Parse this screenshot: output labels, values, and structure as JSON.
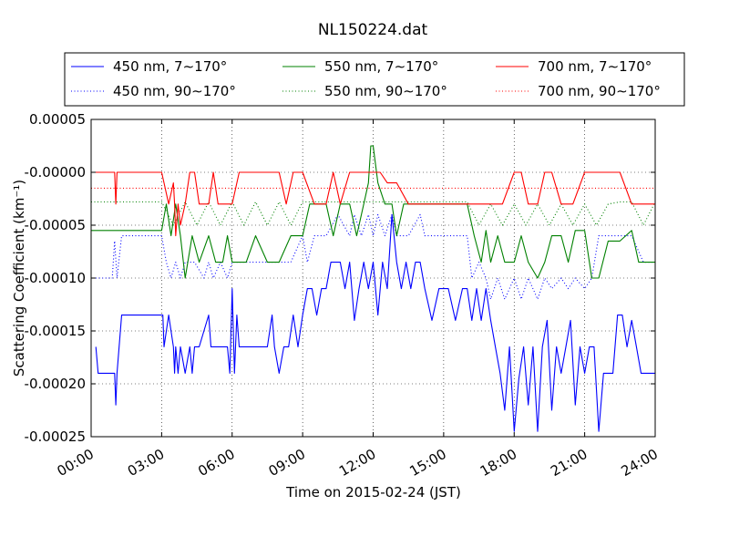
{
  "chart_data": {
    "type": "line",
    "title": "NL150224.dat",
    "xlabel": "Time on 2015-02-24 (JST)",
    "ylabel": "Scattering Coefficient (km⁻¹)",
    "xlim": [
      0,
      24
    ],
    "ylim": [
      -0.00025,
      5e-05
    ],
    "x_ticks": [
      0,
      3,
      6,
      9,
      12,
      15,
      18,
      21,
      24
    ],
    "x_tick_labels": [
      "00:00",
      "03:00",
      "06:00",
      "09:00",
      "12:00",
      "15:00",
      "18:00",
      "21:00",
      "24:00"
    ],
    "y_ticks": [
      5e-05,
      0.0,
      -5e-05,
      -0.0001,
      -0.00015,
      -0.0002,
      -0.00025
    ],
    "y_tick_labels": [
      "0.00005",
      "-0.00000",
      "-0.00005",
      "-0.00010",
      "-0.00015",
      "-0.00020",
      "-0.00025"
    ],
    "grid": true,
    "legend_position": "top, above plot, 3 columns",
    "series": [
      {
        "name": "450 nm, 7∼170°",
        "color": "#0000ff",
        "style": "solid",
        "x": [
          0.2,
          0.3,
          0.35,
          0.6,
          0.9,
          1.0,
          1.05,
          1.1,
          1.3,
          1.5,
          2.0,
          2.5,
          2.9,
          3.0,
          3.05,
          3.1,
          3.3,
          3.5,
          3.55,
          3.6,
          3.7,
          3.8,
          4.0,
          4.2,
          4.3,
          4.4,
          4.6,
          5.0,
          5.1,
          5.2,
          5.4,
          5.8,
          5.9,
          6.0,
          6.1,
          6.2,
          6.3,
          6.5,
          7.0,
          7.5,
          7.7,
          7.8,
          8.0,
          8.2,
          8.4,
          8.6,
          8.8,
          9.0,
          9.2,
          9.4,
          9.6,
          9.8,
          10.0,
          10.2,
          10.4,
          10.6,
          10.8,
          11.0,
          11.2,
          11.4,
          11.6,
          11.8,
          12.0,
          12.2,
          12.4,
          12.6,
          12.8,
          13.0,
          13.2,
          13.4,
          13.6,
          13.8,
          14.0,
          14.2,
          14.5,
          14.8,
          15.0,
          15.2,
          15.5,
          15.8,
          16.0,
          16.2,
          16.4,
          16.6,
          16.8,
          17.0,
          17.2,
          17.4,
          17.6,
          17.8,
          18.0,
          18.2,
          18.4,
          18.6,
          18.8,
          19.0,
          19.2,
          19.4,
          19.6,
          19.8,
          20.0,
          20.2,
          20.4,
          20.6,
          20.8,
          21.0,
          21.2,
          21.4,
          21.6,
          21.8,
          22.0,
          22.2,
          22.4,
          22.6,
          22.8,
          23.0,
          23.2,
          23.4,
          23.6,
          23.8,
          24.0
        ],
        "y": [
          -0.000165,
          -0.00019,
          -0.00019,
          -0.00019,
          -0.00019,
          -0.00019,
          -0.00022,
          -0.00019,
          -0.000135,
          -0.000135,
          -0.000135,
          -0.000135,
          -0.000135,
          -0.000135,
          -0.000135,
          -0.000165,
          -0.000135,
          -0.000165,
          -0.00019,
          -0.000165,
          -0.00019,
          -0.000165,
          -0.00019,
          -0.000165,
          -0.00019,
          -0.000165,
          -0.000165,
          -0.000135,
          -0.000165,
          -0.000165,
          -0.000165,
          -0.000165,
          -0.00019,
          -0.00011,
          -0.00019,
          -0.000135,
          -0.000165,
          -0.000165,
          -0.000165,
          -0.000165,
          -0.000135,
          -0.000165,
          -0.00019,
          -0.000165,
          -0.000165,
          -0.000135,
          -0.000165,
          -0.000135,
          -0.00011,
          -0.00011,
          -0.000135,
          -0.00011,
          -0.00011,
          -8.5e-05,
          -8.5e-05,
          -8.5e-05,
          -0.00011,
          -8.5e-05,
          -0.00014,
          -0.00011,
          -8.5e-05,
          -0.00011,
          -8.5e-05,
          -0.000135,
          -8.5e-05,
          -0.00011,
          -4e-05,
          -8.5e-05,
          -0.00011,
          -8.5e-05,
          -0.00011,
          -8.5e-05,
          -8.5e-05,
          -0.00011,
          -0.00014,
          -0.00011,
          -0.00011,
          -0.00011,
          -0.00014,
          -0.00011,
          -0.00011,
          -0.00014,
          -0.00011,
          -0.00014,
          -0.00011,
          -0.00014,
          -0.000165,
          -0.00019,
          -0.000225,
          -0.000165,
          -0.000245,
          -0.000195,
          -0.000165,
          -0.00022,
          -0.000165,
          -0.000245,
          -0.000165,
          -0.00014,
          -0.000225,
          -0.000165,
          -0.00019,
          -0.000165,
          -0.00014,
          -0.00022,
          -0.000165,
          -0.00019,
          -0.000165,
          -0.000165,
          -0.000245,
          -0.00019,
          -0.00019,
          -0.00019,
          -0.000135,
          -0.000135,
          -0.000165,
          -0.00014,
          -0.000165,
          -0.00019,
          -0.00019,
          -0.00019,
          -0.00019
        ]
      },
      {
        "name": "450 nm, 90∼170°",
        "color": "#0000ff",
        "style": "dotted",
        "x": [
          0.2,
          0.5,
          0.9,
          1.0,
          1.1,
          1.3,
          1.5,
          2.0,
          2.5,
          3.0,
          3.2,
          3.4,
          3.6,
          3.8,
          4.0,
          4.4,
          4.8,
          5.0,
          5.2,
          5.5,
          5.8,
          6.0,
          6.5,
          7.0,
          7.5,
          8.0,
          8.5,
          9.0,
          9.2,
          9.5,
          10.0,
          10.5,
          11.0,
          11.2,
          11.5,
          11.8,
          12.0,
          12.2,
          12.5,
          12.8,
          13.0,
          13.5,
          14.0,
          14.2,
          14.5,
          15.0,
          15.5,
          16.0,
          16.2,
          16.5,
          16.8,
          17.0,
          17.3,
          17.6,
          18.0,
          18.3,
          18.6,
          19.0,
          19.3,
          19.6,
          20.0,
          20.3,
          20.6,
          21.0,
          21.3,
          21.6,
          22.0,
          22.5,
          23.0,
          23.5,
          24.0
        ],
        "y": [
          -0.0001,
          -0.0001,
          -0.0001,
          -6.5e-05,
          -0.0001,
          -6e-05,
          -6e-05,
          -6e-05,
          -6e-05,
          -6e-05,
          -8.5e-05,
          -0.0001,
          -8.5e-05,
          -0.0001,
          -8.5e-05,
          -8.5e-05,
          -0.0001,
          -8.5e-05,
          -0.0001,
          -8.5e-05,
          -0.0001,
          -8.5e-05,
          -8.5e-05,
          -8.5e-05,
          -8.5e-05,
          -8.5e-05,
          -8.5e-05,
          -6e-05,
          -8.5e-05,
          -6e-05,
          -6e-05,
          -4e-05,
          -6e-05,
          -4e-05,
          -6e-05,
          -4e-05,
          -6e-05,
          -4e-05,
          -6e-05,
          -4e-05,
          -6e-05,
          -6e-05,
          -4e-05,
          -6e-05,
          -6e-05,
          -6e-05,
          -6e-05,
          -6e-05,
          -0.0001,
          -8.5e-05,
          -0.0001,
          -0.00012,
          -0.0001,
          -0.00012,
          -0.0001,
          -0.00012,
          -0.0001,
          -0.00012,
          -0.0001,
          -0.00011,
          -0.0001,
          -0.00011,
          -0.0001,
          -0.00011,
          -0.0001,
          -6e-05,
          -6e-05,
          -6e-05,
          -6e-05,
          -8.5e-05,
          -8.5e-05
        ]
      },
      {
        "name": "550 nm, 7∼170°",
        "color": "#008000",
        "style": "solid",
        "x": [
          0.0,
          0.5,
          1.0,
          1.5,
          2.0,
          2.5,
          3.0,
          3.2,
          3.4,
          3.6,
          3.8,
          4.0,
          4.3,
          4.6,
          5.0,
          5.3,
          5.6,
          5.8,
          6.0,
          6.3,
          6.6,
          7.0,
          7.5,
          8.0,
          8.5,
          9.0,
          9.3,
          9.6,
          10.0,
          10.3,
          10.6,
          11.0,
          11.3,
          11.6,
          11.8,
          11.9,
          12.0,
          12.2,
          12.5,
          12.8,
          13.0,
          13.3,
          13.6,
          14.0,
          14.5,
          15.0,
          15.5,
          16.0,
          16.3,
          16.6,
          16.8,
          17.0,
          17.3,
          17.6,
          18.0,
          18.3,
          18.6,
          19.0,
          19.3,
          19.6,
          20.0,
          20.3,
          20.6,
          21.0,
          21.3,
          21.6,
          22.0,
          22.5,
          23.0,
          23.3,
          23.6,
          24.0
        ],
        "y": [
          -5.5e-05,
          -5.5e-05,
          -5.5e-05,
          -5.5e-05,
          -5.5e-05,
          -5.5e-05,
          -5.5e-05,
          -3e-05,
          -6e-05,
          -3e-05,
          -6e-05,
          -0.0001,
          -6e-05,
          -8.5e-05,
          -6e-05,
          -8.5e-05,
          -8.5e-05,
          -6e-05,
          -8.5e-05,
          -8.5e-05,
          -8.5e-05,
          -6e-05,
          -8.5e-05,
          -8.5e-05,
          -6e-05,
          -6e-05,
          -3e-05,
          -3e-05,
          -3e-05,
          -6e-05,
          -3e-05,
          -3e-05,
          -6e-05,
          -3e-05,
          -1e-05,
          2.5e-05,
          2.5e-05,
          -1e-05,
          -3e-05,
          -3e-05,
          -6e-05,
          -3e-05,
          -3e-05,
          -3e-05,
          -3e-05,
          -3e-05,
          -3e-05,
          -3e-05,
          -6e-05,
          -8.5e-05,
          -5.5e-05,
          -8.5e-05,
          -6e-05,
          -8.5e-05,
          -8.5e-05,
          -6e-05,
          -8.5e-05,
          -0.0001,
          -8.5e-05,
          -6e-05,
          -6e-05,
          -8.5e-05,
          -5.5e-05,
          -5.5e-05,
          -0.0001,
          -0.0001,
          -6.5e-05,
          -6.5e-05,
          -5.5e-05,
          -8.5e-05,
          -8.5e-05,
          -8.5e-05
        ]
      },
      {
        "name": "550 nm, 90∼170°",
        "color": "#008000",
        "style": "dotted",
        "x": [
          0.0,
          1.0,
          2.0,
          3.0,
          3.5,
          4.0,
          4.5,
          5.0,
          5.5,
          6.0,
          6.5,
          7.0,
          7.5,
          8.0,
          8.5,
          9.0,
          9.5,
          10.0,
          10.5,
          11.0,
          11.5,
          12.0,
          12.5,
          13.0,
          13.5,
          14.0,
          14.5,
          15.0,
          15.5,
          16.0,
          16.5,
          17.0,
          17.5,
          18.0,
          18.5,
          19.0,
          19.5,
          20.0,
          20.5,
          21.0,
          21.5,
          22.0,
          22.5,
          23.0,
          23.5,
          24.0
        ],
        "y": [
          -2.8e-05,
          -2.8e-05,
          -2.8e-05,
          -2.8e-05,
          -5e-05,
          -2.8e-05,
          -5e-05,
          -2.8e-05,
          -5e-05,
          -2.8e-05,
          -5e-05,
          -2.8e-05,
          -5e-05,
          -2.8e-05,
          -5e-05,
          -2.8e-05,
          -2.8e-05,
          -2.8e-05,
          -2.8e-05,
          -2.8e-05,
          -2.8e-05,
          -2.8e-05,
          -2.8e-05,
          -2.8e-05,
          -2.8e-05,
          -2.8e-05,
          -2.8e-05,
          -2.8e-05,
          -2.8e-05,
          -2.8e-05,
          -5e-05,
          -3e-05,
          -5e-05,
          -3e-05,
          -5e-05,
          -3e-05,
          -5e-05,
          -3e-05,
          -5e-05,
          -3e-05,
          -5e-05,
          -3e-05,
          -2.8e-05,
          -2.8e-05,
          -5e-05,
          -2.8e-05
        ]
      },
      {
        "name": "700 nm, 7∼170°",
        "color": "#ff0000",
        "style": "solid",
        "x": [
          0.0,
          0.5,
          1.0,
          1.05,
          1.1,
          1.5,
          2.0,
          2.5,
          3.0,
          3.1,
          3.3,
          3.5,
          3.55,
          3.6,
          3.7,
          3.8,
          4.0,
          4.2,
          4.4,
          4.6,
          5.0,
          5.2,
          5.4,
          6.0,
          6.3,
          6.6,
          7.0,
          7.5,
          8.0,
          8.3,
          8.6,
          9.0,
          9.5,
          10.0,
          10.3,
          10.6,
          11.0,
          11.3,
          11.5,
          12.0,
          12.3,
          12.6,
          13.0,
          13.5,
          14.0,
          14.5,
          15.0,
          15.5,
          16.0,
          16.5,
          17.0,
          17.5,
          18.0,
          18.3,
          18.6,
          19.0,
          19.3,
          19.6,
          20.0,
          20.5,
          21.0,
          21.3,
          21.6,
          22.0,
          22.5,
          23.0,
          23.5,
          24.0
        ],
        "y": [
          0.0,
          0.0,
          0.0,
          -3e-05,
          0.0,
          0.0,
          0.0,
          0.0,
          0.0,
          -1e-05,
          -3e-05,
          -1e-05,
          -3e-05,
          -6e-05,
          -3e-05,
          -5e-05,
          -3e-05,
          0.0,
          0.0,
          -3e-05,
          -3e-05,
          0.0,
          -3e-05,
          -3e-05,
          0.0,
          0.0,
          0.0,
          0.0,
          0.0,
          -3e-05,
          0.0,
          0.0,
          -3e-05,
          -3e-05,
          0.0,
          -3e-05,
          0.0,
          0.0,
          0.0,
          0.0,
          0.0,
          -1e-05,
          -1e-05,
          -3e-05,
          -3e-05,
          -3e-05,
          -3e-05,
          -3e-05,
          -3e-05,
          -3e-05,
          -3e-05,
          -3e-05,
          0.0,
          0.0,
          -3e-05,
          -3e-05,
          0.0,
          0.0,
          -3e-05,
          -3e-05,
          0.0,
          0.0,
          0.0,
          0.0,
          0.0,
          -3e-05,
          -3e-05,
          -3e-05
        ]
      },
      {
        "name": "700 nm, 90∼170°",
        "color": "#ff0000",
        "style": "dotted",
        "x": [
          0.0,
          3.0,
          3.3,
          6.0,
          9.0,
          12.0,
          15.0,
          18.0,
          21.0,
          24.0
        ],
        "y": [
          -1.5e-05,
          -1.5e-05,
          -1.5e-05,
          -1.5e-05,
          -1.5e-05,
          -1.5e-05,
          -1.5e-05,
          -1.5e-05,
          -1.5e-05,
          -1.5e-05
        ]
      }
    ]
  }
}
